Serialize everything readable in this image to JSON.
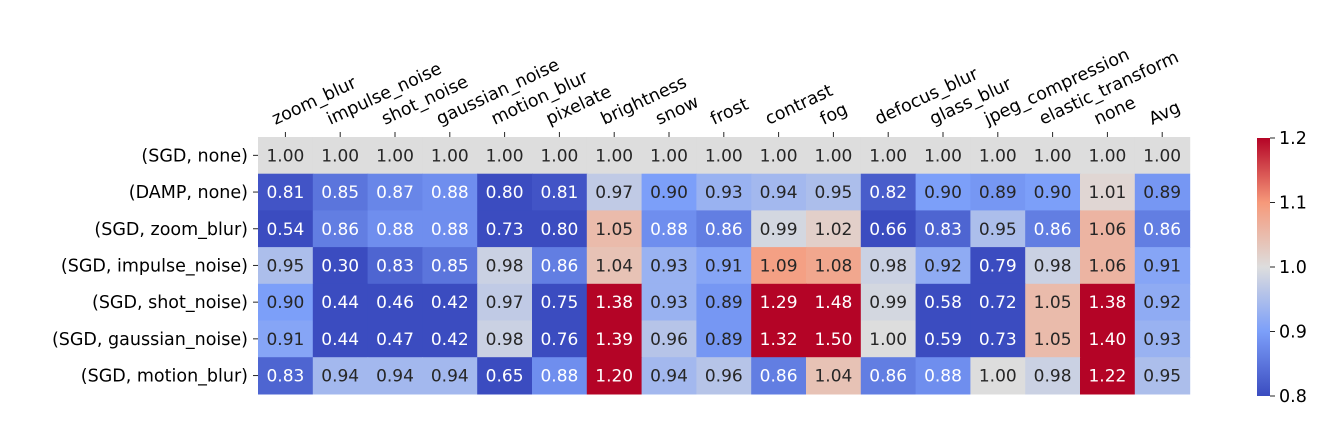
{
  "chart_data": {
    "type": "heatmap",
    "x_categories": [
      "zoom_blur",
      "impulse_noise",
      "shot_noise",
      "gaussian_noise",
      "motion_blur",
      "pixelate",
      "brightness",
      "snow",
      "frost",
      "contrast",
      "fog",
      "defocus_blur",
      "glass_blur",
      "jpeg_compression",
      "elastic_transform",
      "none",
      "Avg"
    ],
    "y_categories": [
      "(SGD, none)",
      "(DAMP, none)",
      "(SGD, zoom_blur)",
      "(SGD, impulse_noise)",
      "(SGD, shot_noise)",
      "(SGD, gaussian_noise)",
      "(SGD, motion_blur)"
    ],
    "values": [
      [
        1.0,
        1.0,
        1.0,
        1.0,
        1.0,
        1.0,
        1.0,
        1.0,
        1.0,
        1.0,
        1.0,
        1.0,
        1.0,
        1.0,
        1.0,
        1.0,
        1.0
      ],
      [
        0.81,
        0.85,
        0.87,
        0.88,
        0.8,
        0.81,
        0.97,
        0.9,
        0.93,
        0.94,
        0.95,
        0.82,
        0.9,
        0.89,
        0.9,
        1.01,
        0.89
      ],
      [
        0.54,
        0.86,
        0.88,
        0.88,
        0.73,
        0.8,
        1.05,
        0.88,
        0.86,
        0.99,
        1.02,
        0.66,
        0.83,
        0.95,
        0.86,
        1.06,
        0.86
      ],
      [
        0.95,
        0.3,
        0.83,
        0.85,
        0.98,
        0.86,
        1.04,
        0.93,
        0.91,
        1.09,
        1.08,
        0.98,
        0.92,
        0.79,
        0.98,
        1.06,
        0.91
      ],
      [
        0.9,
        0.44,
        0.46,
        0.42,
        0.97,
        0.75,
        1.38,
        0.93,
        0.89,
        1.29,
        1.48,
        0.99,
        0.58,
        0.72,
        1.05,
        1.38,
        0.92
      ],
      [
        0.91,
        0.44,
        0.47,
        0.42,
        0.98,
        0.76,
        1.39,
        0.96,
        0.89,
        1.32,
        1.5,
        1.0,
        0.59,
        0.73,
        1.05,
        1.4,
        0.93
      ],
      [
        0.83,
        0.94,
        0.94,
        0.94,
        0.65,
        0.88,
        1.2,
        0.94,
        0.96,
        0.86,
        1.04,
        0.86,
        0.88,
        1.0,
        0.98,
        1.22,
        0.95
      ]
    ],
    "colormap": "coolwarm",
    "vmin": 0.8,
    "vmax": 1.2,
    "colorbar_ticks": [
      "1.2",
      "1.1",
      "1.0",
      "0.9",
      "0.8"
    ],
    "annotated": true,
    "x_labels_position": "top",
    "colors": {
      "low": "#3b4cc0",
      "mid": "#dddddd",
      "high": "#b40426"
    }
  }
}
